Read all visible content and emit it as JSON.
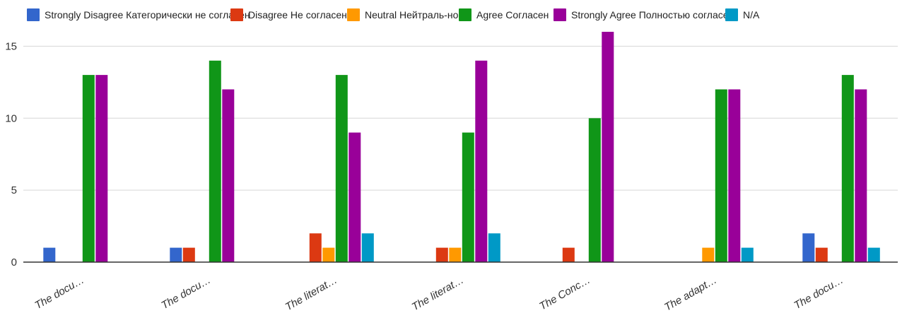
{
  "chart_data": {
    "type": "bar",
    "categories": [
      "The docu…",
      "The docu…",
      "The literat…",
      "The literat…",
      "The Conc…",
      "The adapt…",
      "The docu…"
    ],
    "series": [
      {
        "name": "Strongly Disagree Категорически не согласен",
        "color": "#3366cc",
        "values": [
          1,
          1,
          0,
          0,
          0,
          0,
          2
        ]
      },
      {
        "name": "Disagree Не согласен",
        "color": "#dc3912",
        "values": [
          0,
          1,
          2,
          1,
          1,
          0,
          1
        ]
      },
      {
        "name": "Neutral Нейтраль-но",
        "color": "#ff9900",
        "values": [
          0,
          0,
          1,
          1,
          0,
          1,
          0
        ]
      },
      {
        "name": "Agree Согласен",
        "color": "#109618",
        "values": [
          13,
          14,
          13,
          9,
          10,
          12,
          13
        ]
      },
      {
        "name": "Strongly Agree Полностью согласен",
        "color": "#990099",
        "values": [
          13,
          12,
          9,
          14,
          16,
          12,
          12
        ]
      },
      {
        "name": "N/A",
        "color": "#0099c6",
        "values": [
          0,
          0,
          2,
          2,
          0,
          1,
          1
        ]
      }
    ],
    "y_ticks": [
      "0",
      "5",
      "10",
      "15"
    ],
    "ylim": [
      0,
      16
    ],
    "grid": true,
    "legend_position": "top"
  }
}
